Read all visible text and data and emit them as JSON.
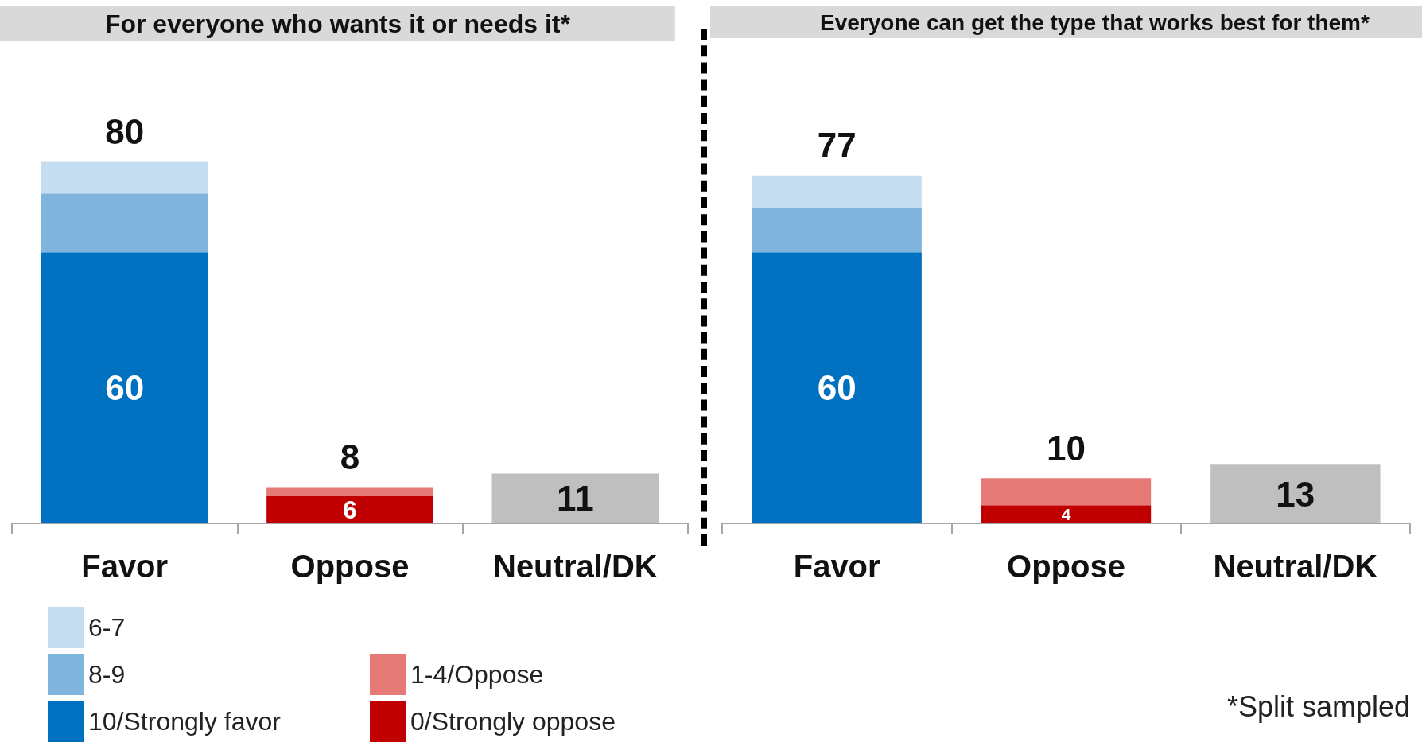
{
  "chart_data": [
    {
      "type": "bar",
      "title": "For everyone who wants it or needs it*",
      "categories": [
        "Favor",
        "Oppose",
        "Neutral/DK"
      ],
      "stacked": true,
      "legend": "bottom left",
      "series": [
        {
          "name": "10/Strongly favor",
          "color": "#0070c0",
          "values": [
            60,
            null,
            null
          ],
          "value_labels": [
            "60",
            null,
            null
          ]
        },
        {
          "name": "8-9",
          "color": "#7fb4dd",
          "values": [
            13,
            null,
            null
          ]
        },
        {
          "name": "6-7",
          "color": "#c5ddf0",
          "values": [
            7,
            null,
            null
          ]
        },
        {
          "name": "0/Strongly oppose",
          "color": "#c00000",
          "values": [
            null,
            6,
            null
          ],
          "value_labels": [
            null,
            "6",
            null
          ]
        },
        {
          "name": "1-4/Oppose",
          "color": "#e57a77",
          "values": [
            null,
            2,
            null
          ]
        },
        {
          "color": "#bfbfbf",
          "values": [
            null,
            null,
            11
          ],
          "value_labels": [
            null,
            null,
            "11"
          ]
        }
      ],
      "totals": [
        "80",
        "8",
        null
      ]
    },
    {
      "type": "bar",
      "title": "Everyone can get the type that works best for them*",
      "categories": [
        "Favor",
        "Oppose",
        "Neutral/DK"
      ],
      "stacked": true,
      "series": [
        {
          "color": "#0070c0",
          "values": [
            60,
            null,
            null
          ],
          "value_labels": [
            "60",
            null,
            null
          ]
        },
        {
          "color": "#7fb4dd",
          "values": [
            10,
            null,
            null
          ]
        },
        {
          "color": "#c5ddf0",
          "values": [
            7,
            null,
            null
          ]
        },
        {
          "color": "#c00000",
          "values": [
            null,
            4,
            null
          ],
          "value_labels": [
            null,
            "4",
            null
          ]
        },
        {
          "color": "#e57a77",
          "values": [
            null,
            6,
            null
          ]
        },
        {
          "color": "#bfbfbf",
          "values": [
            null,
            null,
            13
          ],
          "value_labels": [
            null,
            null,
            "13"
          ]
        }
      ],
      "totals": [
        "77",
        "10",
        null
      ],
      "annotations": [
        "*Split sampled"
      ]
    }
  ]
}
